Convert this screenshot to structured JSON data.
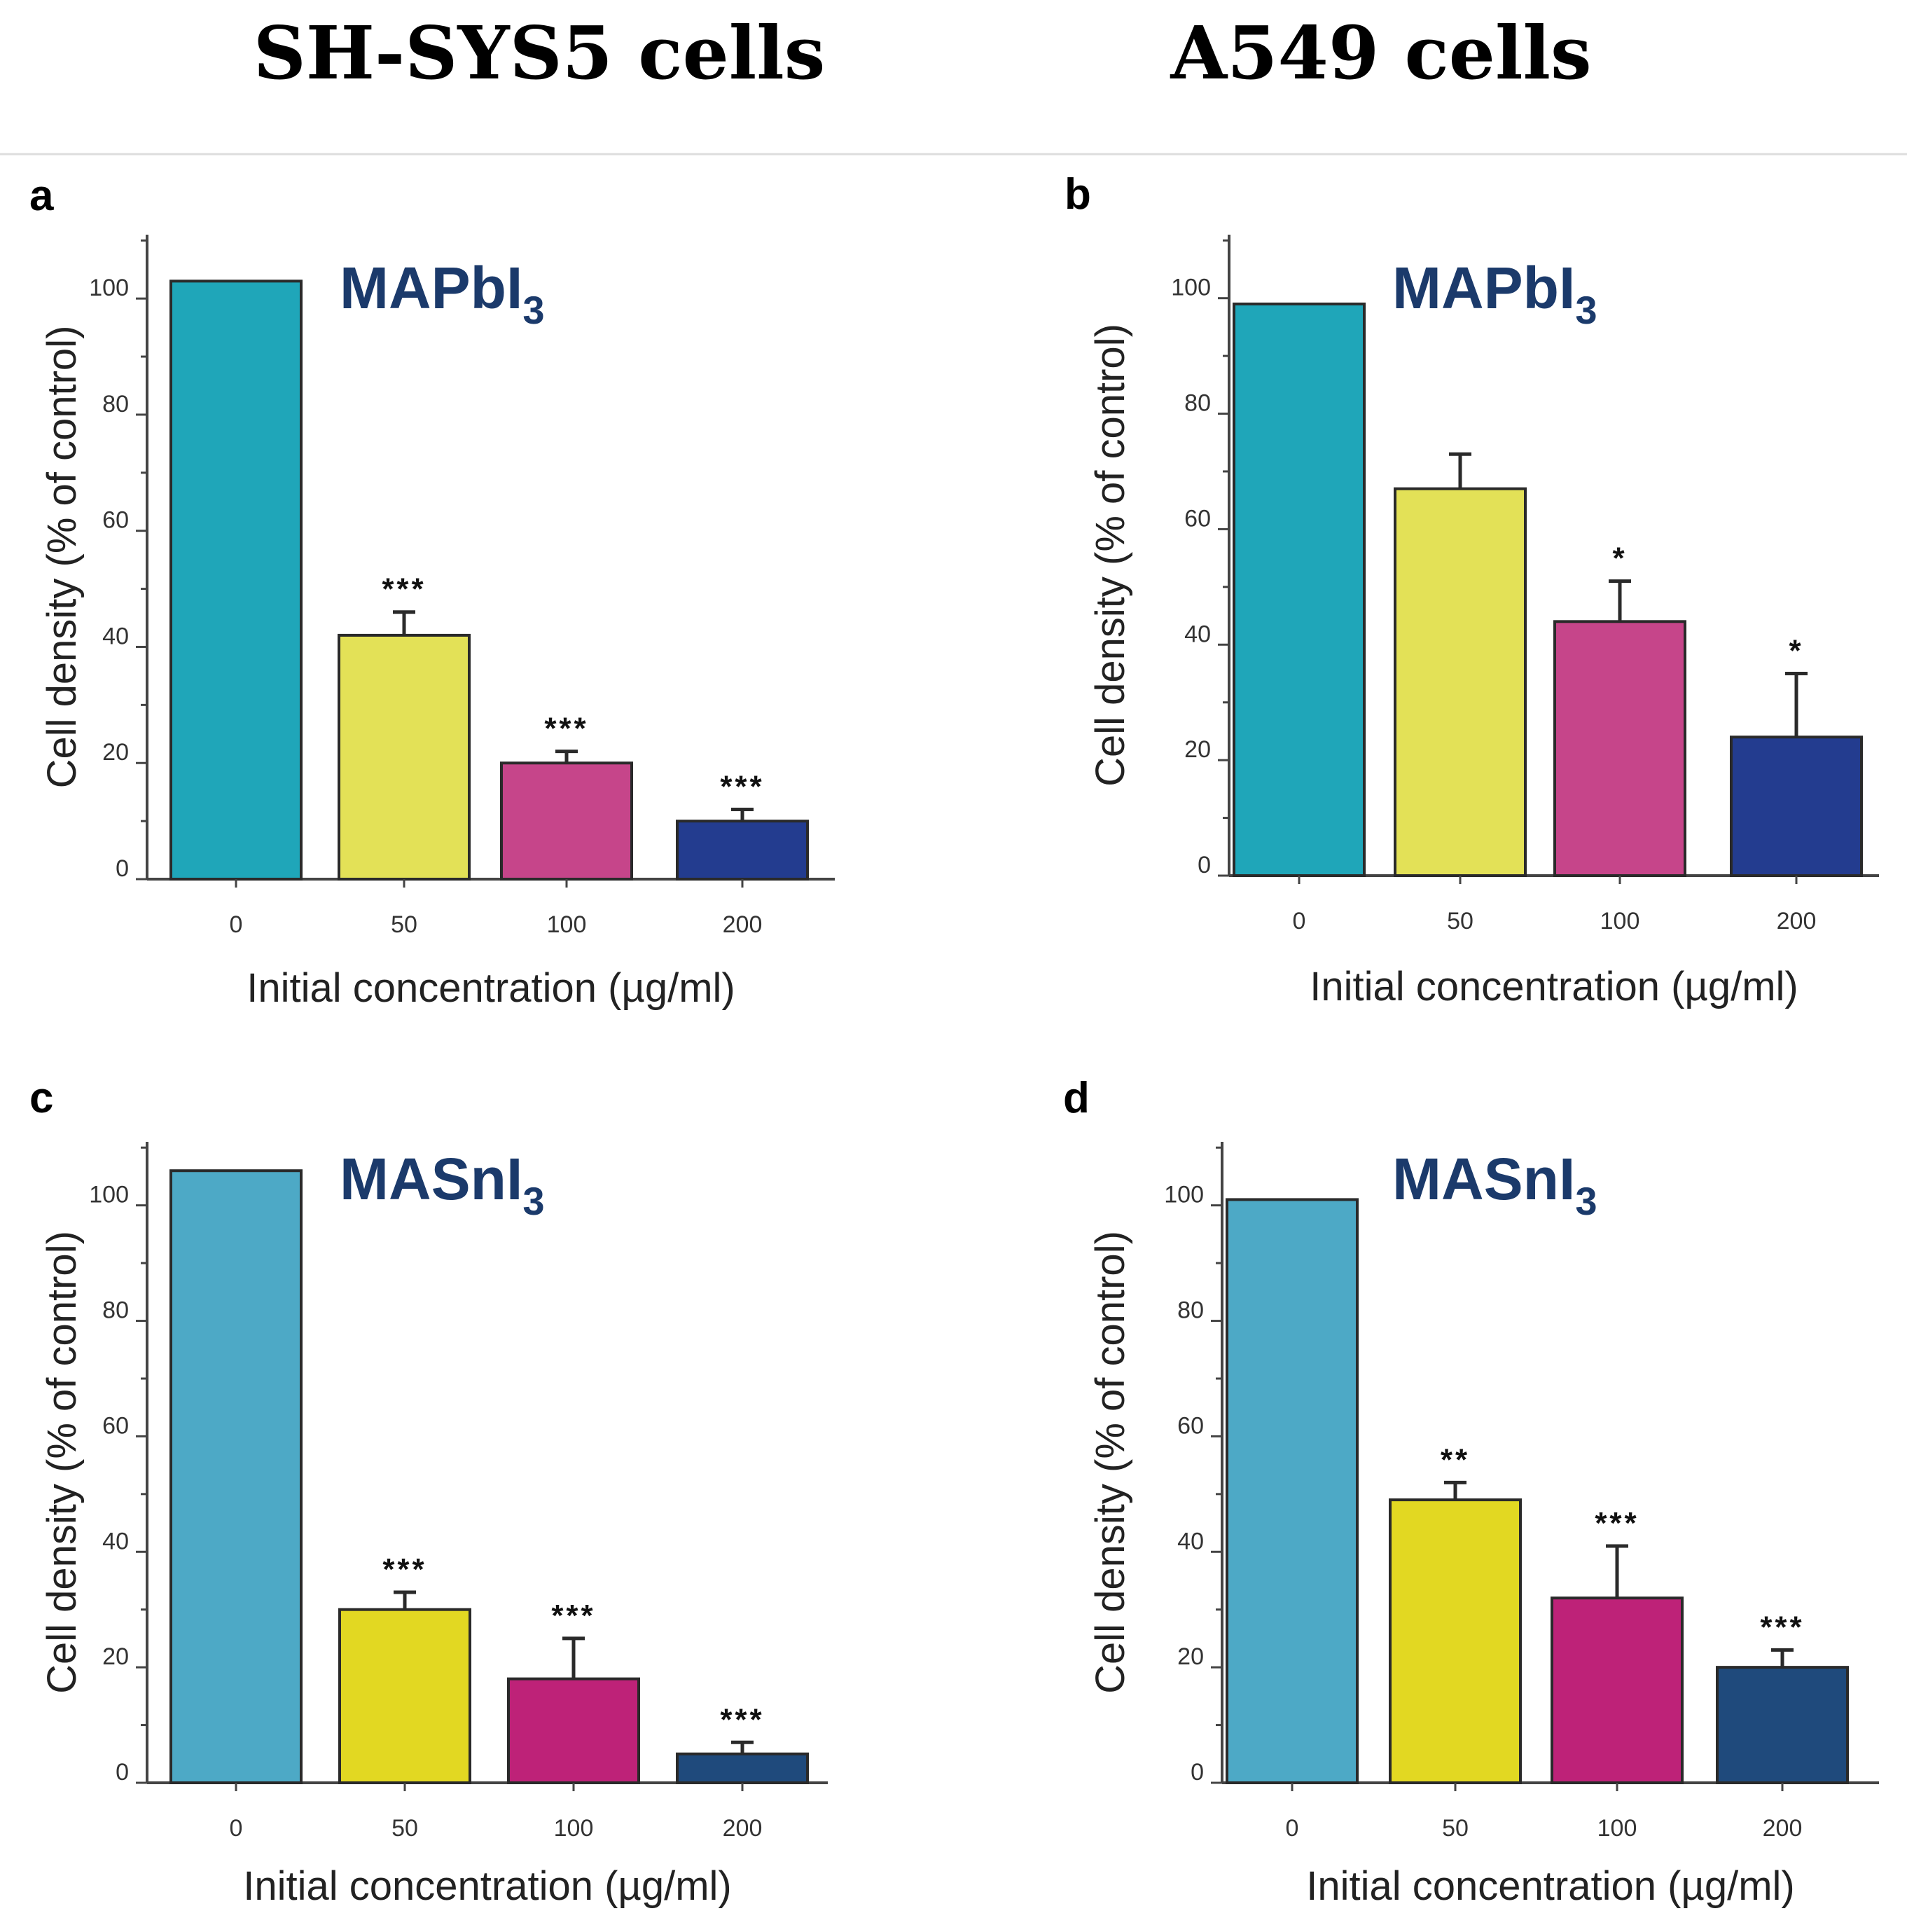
{
  "column_titles": [
    "SH-SYS5 cells",
    "A549 cells"
  ],
  "chart_data": [
    {
      "panel": "a",
      "type": "bar",
      "compound_main": "MAPbI",
      "compound_sub": "3",
      "categories": [
        "0",
        "50",
        "100",
        "200"
      ],
      "values": [
        103,
        42,
        20,
        10
      ],
      "errors": [
        0,
        4,
        2,
        2
      ],
      "significance": [
        "",
        "***",
        "***",
        "***"
      ],
      "colors": [
        "#1fa6b9",
        "#e3e157",
        "#c6458a",
        "#233c8f"
      ],
      "xlabel": "Initial concentration (µg/ml)",
      "ylabel": "Cell density (% of control)",
      "yticks": [
        0,
        20,
        40,
        60,
        80,
        100
      ],
      "ylim": [
        0,
        111
      ]
    },
    {
      "panel": "b",
      "type": "bar",
      "compound_main": "MAPbI",
      "compound_sub": "3",
      "categories": [
        "0",
        "50",
        "100",
        "200"
      ],
      "values": [
        99,
        67,
        44,
        24
      ],
      "errors": [
        0,
        6,
        7,
        11
      ],
      "significance": [
        "",
        "",
        "*",
        "*"
      ],
      "colors": [
        "#1fa6b9",
        "#e3e157",
        "#c6458a",
        "#233c8f"
      ],
      "xlabel": "Initial concentration (µg/ml)",
      "ylabel": "Cell density (% of control)",
      "yticks": [
        0,
        20,
        40,
        60,
        80,
        100
      ],
      "ylim": [
        0,
        111
      ]
    },
    {
      "panel": "c",
      "type": "bar",
      "compound_main": "MASnI",
      "compound_sub": "3",
      "categories": [
        "0",
        "50",
        "100",
        "200"
      ],
      "values": [
        106,
        30,
        18,
        5
      ],
      "errors": [
        0,
        3,
        7,
        2
      ],
      "significance": [
        "",
        "***",
        "***",
        "***"
      ],
      "colors": [
        "#4da9c6",
        "#e2d822",
        "#be2278",
        "#1f4a7c"
      ],
      "xlabel": "Initial concentration (µg/ml)",
      "ylabel": "Cell density (% of control)",
      "yticks": [
        0,
        20,
        40,
        60,
        80,
        100
      ],
      "ylim": [
        0,
        111
      ]
    },
    {
      "panel": "d",
      "type": "bar",
      "compound_main": "MASnI",
      "compound_sub": "3",
      "categories": [
        "0",
        "50",
        "100",
        "200"
      ],
      "values": [
        101,
        49,
        32,
        20
      ],
      "errors": [
        0,
        3,
        9,
        3
      ],
      "significance": [
        "",
        "**",
        "***",
        "***"
      ],
      "colors": [
        "#4da9c6",
        "#e2d822",
        "#be2278",
        "#1f4a7c"
      ],
      "xlabel": "Initial concentration (µg/ml)",
      "ylabel": "Cell density (% of control)",
      "yticks": [
        0,
        20,
        40,
        60,
        80,
        100
      ],
      "ylim": [
        0,
        111
      ]
    }
  ]
}
